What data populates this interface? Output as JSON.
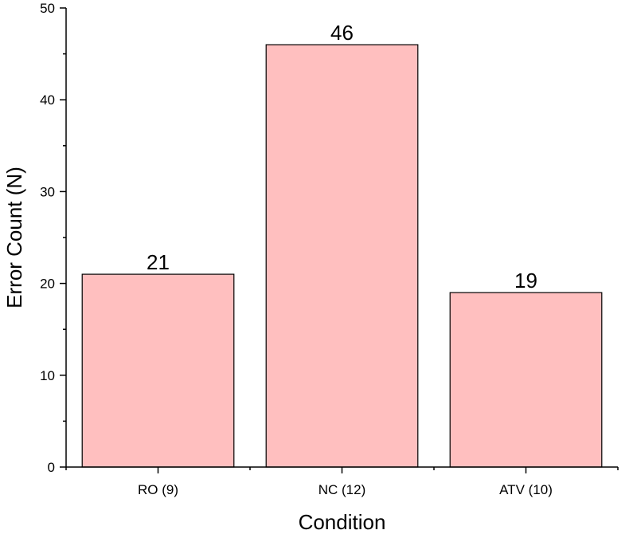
{
  "chart_data": {
    "type": "bar",
    "categories": [
      "RO (9)",
      "NC (12)",
      "ATV (10)"
    ],
    "values": [
      21,
      46,
      19
    ],
    "data_labels": [
      "21",
      "46",
      "19"
    ],
    "title": "",
    "xlabel": "Condition",
    "ylabel": "Error Count (N)",
    "ylim": [
      0,
      50
    ],
    "yticks": [
      0,
      10,
      20,
      30,
      40,
      50
    ],
    "grid": false,
    "legend": "none",
    "bar_color": "#ffbfbf",
    "bar_edge_color": "#000000"
  }
}
